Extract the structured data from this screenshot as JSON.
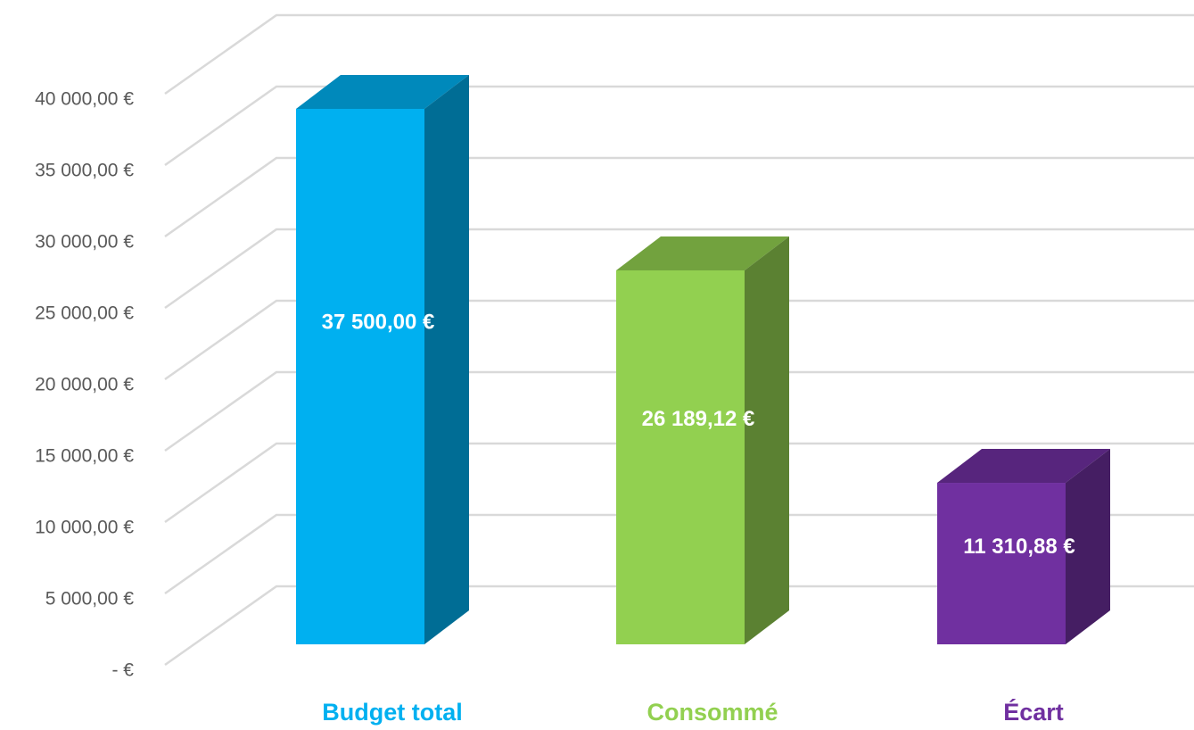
{
  "chart_data": {
    "type": "bar3d",
    "categories": [
      "Budget total",
      "Consommé",
      "Écart"
    ],
    "values": [
      37500,
      26189.12,
      11310.88
    ],
    "value_labels": [
      "37 500,00 €",
      "26 189,12 €",
      "11 310,88 €"
    ],
    "colors": [
      "#00b0f0",
      "#92d050",
      "#7030a0"
    ],
    "ylim": [
      0,
      40000
    ],
    "yticks": [
      {
        "value": 0,
        "label": "-  €"
      },
      {
        "value": 5000,
        "label": "5 000,00 €"
      },
      {
        "value": 10000,
        "label": "10 000,00 €"
      },
      {
        "value": 15000,
        "label": "15 000,00 €"
      },
      {
        "value": 20000,
        "label": "20 000,00 €"
      },
      {
        "value": 25000,
        "label": "25 000,00 €"
      },
      {
        "value": 30000,
        "label": "30 000,00 €"
      },
      {
        "value": 35000,
        "label": "35 000,00 €"
      },
      {
        "value": 40000,
        "label": "40 000,00 €"
      }
    ],
    "grid": true
  }
}
